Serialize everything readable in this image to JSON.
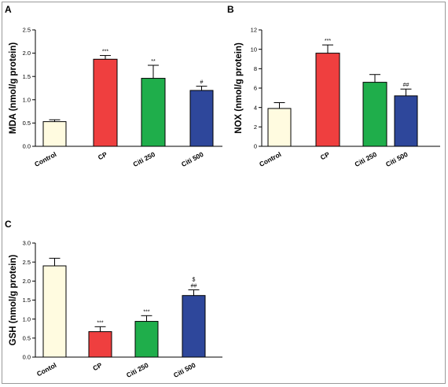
{
  "colors": {
    "Control": "#fffbe0",
    "CP": "#ef3f3f",
    "Citi 250": "#1fae4b",
    "Citi 500": "#2e479b"
  },
  "chart_data": [
    {
      "panel": "A",
      "type": "bar",
      "ylabel": "MDA (nmol/g protein)",
      "categories": [
        "Control",
        "CP",
        "Citi 250",
        "Citi 500"
      ],
      "values": [
        0.53,
        1.87,
        1.46,
        1.2
      ],
      "errors": [
        0.04,
        0.08,
        0.28,
        0.09
      ],
      "significance": [
        "",
        "***",
        "**",
        "#"
      ],
      "ylim": [
        0,
        2.5
      ],
      "yticks": [
        "0.0",
        "0.5",
        "1.0",
        "1.5",
        "2.0",
        "2.5"
      ]
    },
    {
      "panel": "B",
      "type": "bar",
      "ylabel": "NOX (nmol/g protein)",
      "categories": [
        "Control",
        "CP",
        "Citi 250",
        "Citi 500"
      ],
      "values": [
        3.9,
        9.6,
        6.6,
        5.2
      ],
      "errors": [
        0.6,
        0.85,
        0.8,
        0.7
      ],
      "significance": [
        "",
        "***",
        "",
        "##"
      ],
      "ylim": [
        0,
        12
      ],
      "yticks": [
        "0",
        "2",
        "4",
        "6",
        "8",
        "10",
        "12"
      ]
    },
    {
      "panel": "C",
      "type": "bar",
      "ylabel": "GSH (nmol/g protein)",
      "categories": [
        "Contol",
        "CP",
        "Citi 250",
        "Citi 500"
      ],
      "values": [
        2.4,
        0.67,
        0.94,
        1.62
      ],
      "errors": [
        0.2,
        0.13,
        0.15,
        0.15
      ],
      "significance": [
        "",
        "***",
        "***",
        "$\n##"
      ],
      "ylim": [
        0,
        3.0
      ],
      "yticks": [
        "0.0",
        "0.5",
        "1.0",
        "1.5",
        "2.0",
        "2.5",
        "3.0"
      ]
    }
  ]
}
